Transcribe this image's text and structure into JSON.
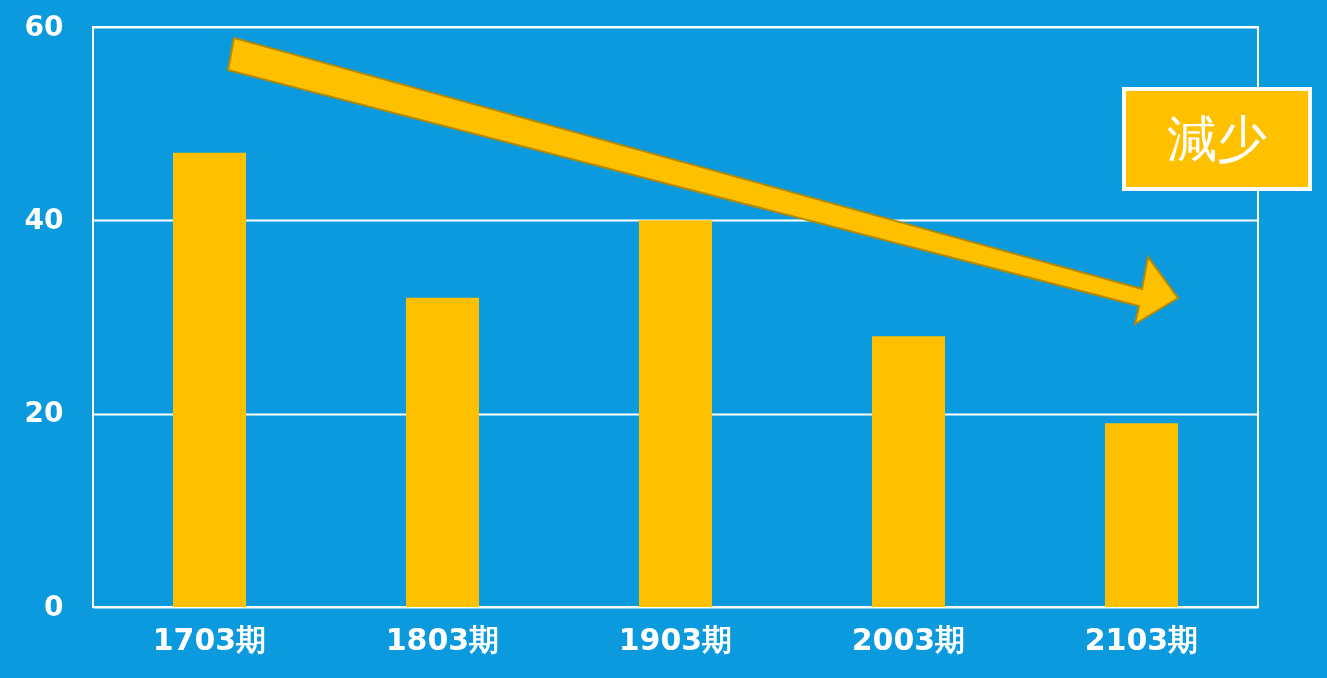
{
  "chart_data": {
    "type": "bar",
    "categories": [
      "1703期",
      "1803期",
      "1903期",
      "2003期",
      "2103期"
    ],
    "values": [
      47,
      32,
      40,
      28,
      19
    ],
    "color": "#ffc000",
    "ylim": [
      0,
      60
    ],
    "yticks": [
      0,
      20,
      40,
      60
    ],
    "grid": "y",
    "annotations": [
      "減少"
    ]
  }
}
